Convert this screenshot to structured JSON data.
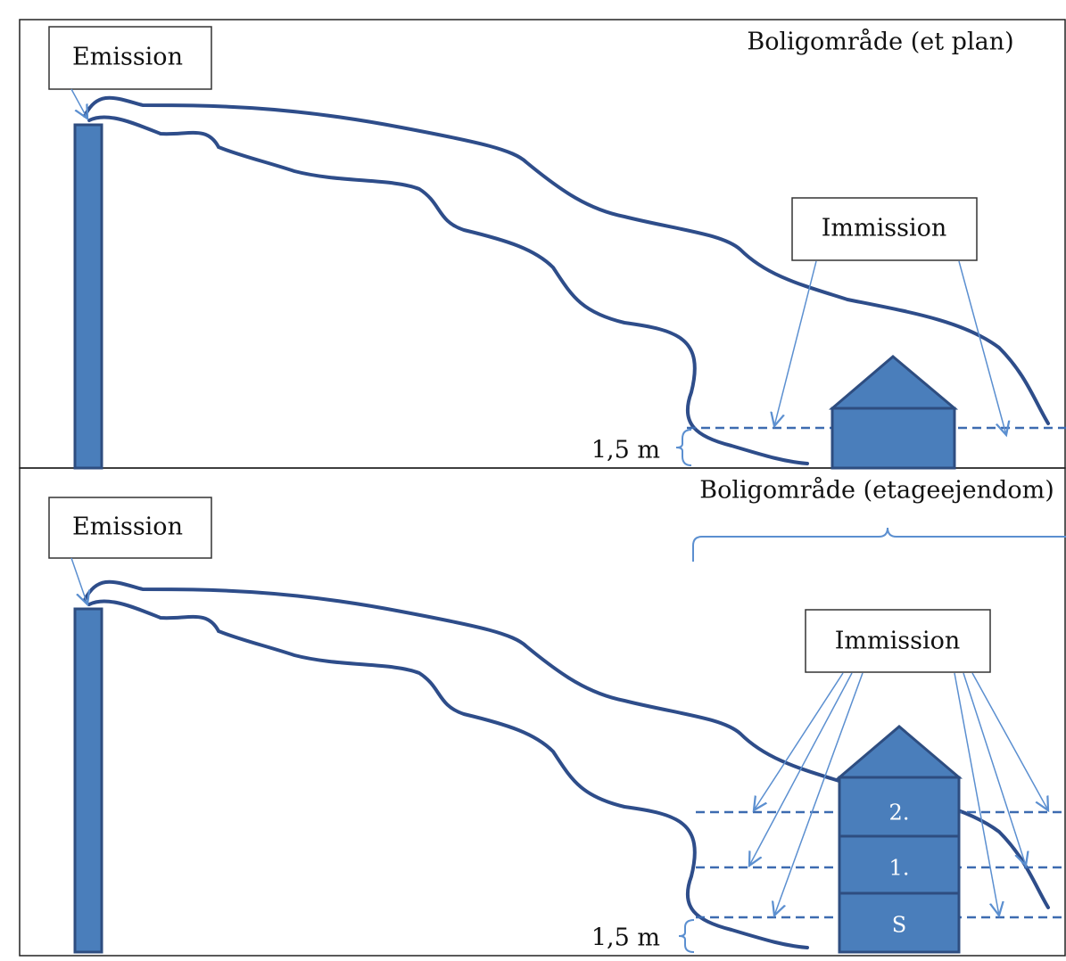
{
  "panels": [
    {
      "emission": "Emission",
      "immission": "Immission",
      "area": "Boligområde (et plan)",
      "height": "1,5 m"
    },
    {
      "emission": "Emission",
      "immission": "Immission",
      "area": "Boligområde (etageejendom)",
      "height": "1,5 m",
      "floors": [
        "2.",
        "1.",
        "S"
      ]
    }
  ]
}
